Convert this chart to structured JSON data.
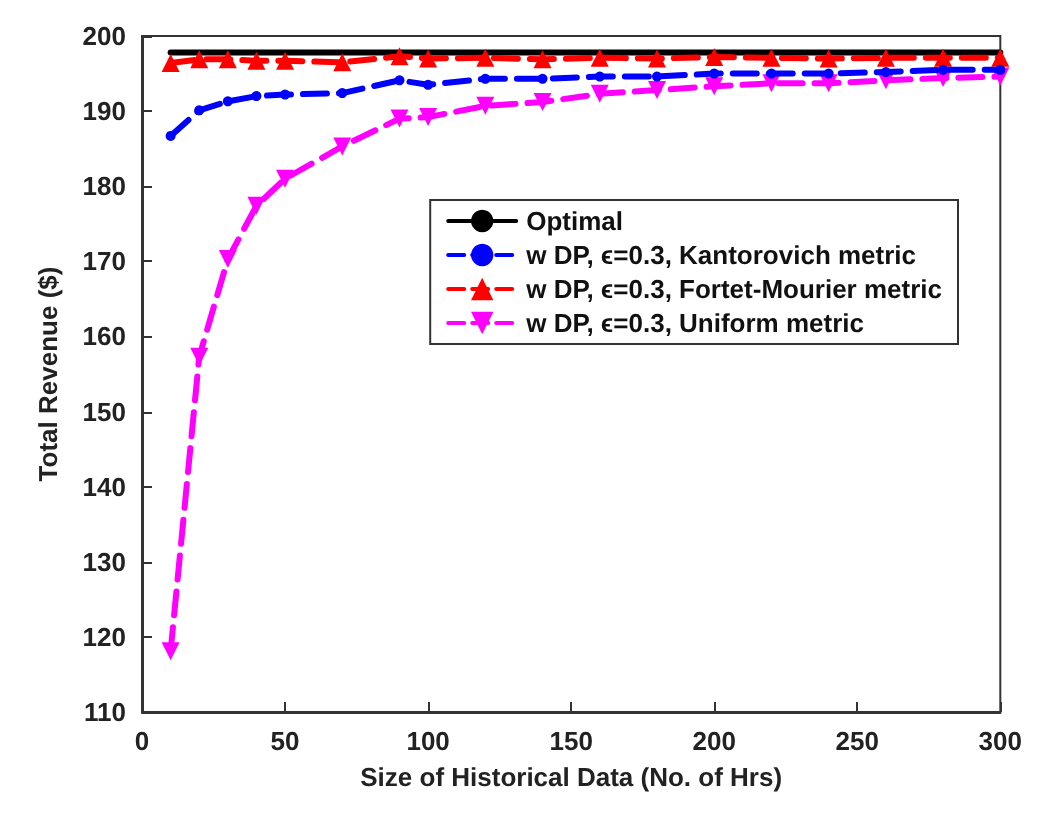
{
  "chart_data": {
    "type": "line",
    "xlabel": "Size of Historical Data (No. of Hrs)",
    "ylabel": "Total Revenue ($)",
    "x": [
      10,
      20,
      30,
      40,
      50,
      70,
      90,
      100,
      120,
      140,
      160,
      180,
      200,
      220,
      240,
      260,
      280,
      300
    ],
    "xlim": [
      0,
      300
    ],
    "xticks": [
      0,
      50,
      100,
      150,
      200,
      250,
      300
    ],
    "ylim": [
      110,
      200
    ],
    "yticks": [
      110,
      120,
      130,
      140,
      150,
      160,
      170,
      180,
      190,
      200
    ],
    "grid": false,
    "legend": "top right",
    "series": [
      {
        "name": "Optimal",
        "color": "#000000",
        "marker": "none",
        "line_style": "solid",
        "values": [
          197.8,
          197.8,
          197.8,
          197.8,
          197.8,
          197.8,
          197.8,
          197.8,
          197.8,
          197.8,
          197.8,
          197.8,
          197.8,
          197.8,
          197.8,
          197.8,
          197.8,
          197.8
        ]
      },
      {
        "name": "w DP, ϵ=0.3, Kantorovich metric",
        "color": "#0000ff",
        "marker": "circle",
        "line_style": "dashed",
        "values": [
          186.7,
          190.1,
          191.3,
          192,
          192.2,
          192.4,
          194.1,
          193.5,
          194.3,
          194.3,
          194.6,
          194.6,
          195,
          195,
          195,
          195.2,
          195.5,
          195.5
        ]
      },
      {
        "name": "w DP, ϵ=0.3, Fortet-Mourier metric",
        "color": "#ff0000",
        "marker": "triangle",
        "line_style": "dashed",
        "values": [
          196.4,
          196.9,
          196.9,
          196.7,
          196.7,
          196.5,
          197.3,
          197,
          197.1,
          196.9,
          197.1,
          197,
          197.2,
          197.1,
          197,
          197.1,
          197.1,
          197.1
        ]
      },
      {
        "name": "w DP, ϵ=0.3, Uniform metric",
        "color": "#ff00ff",
        "marker": "triangle-down",
        "line_style": "dashed",
        "values": [
          118.1,
          157.3,
          170.3,
          177.4,
          181,
          185.3,
          189,
          189.2,
          190.7,
          191.2,
          192.3,
          192.8,
          193.3,
          193.7,
          193.7,
          194.1,
          194.4,
          194.6
        ]
      }
    ]
  }
}
